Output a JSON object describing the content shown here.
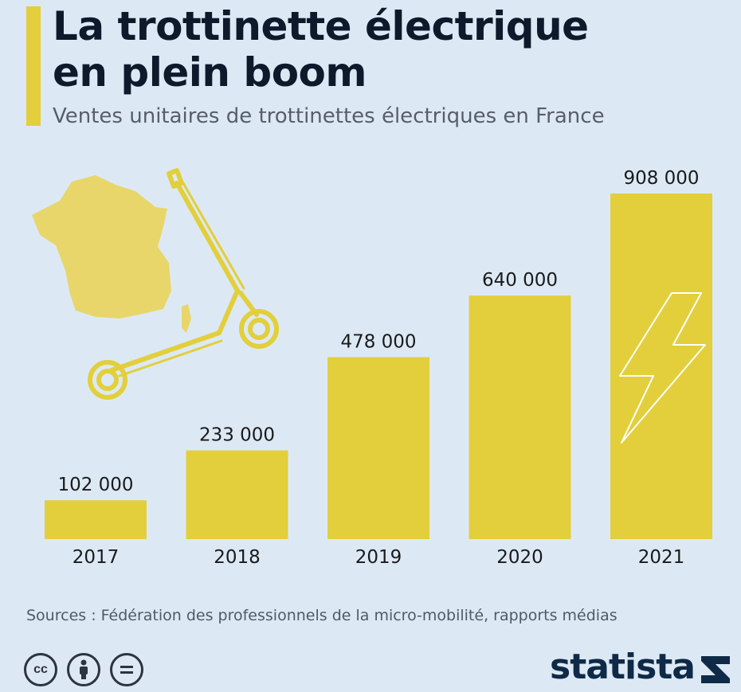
{
  "header": {
    "title_line1": "La trottinette électrique",
    "title_line2": "en plein boom",
    "subtitle": "Ventes unitaires de trottinettes électriques en France"
  },
  "colors": {
    "background": "#dce9f5",
    "bar": "#e2cf3b",
    "text": "#1a1a1a"
  },
  "chart_data": {
    "type": "bar",
    "categories": [
      "2017",
      "2018",
      "2019",
      "2020",
      "2021"
    ],
    "values": [
      102000,
      233000,
      478000,
      640000,
      908000
    ],
    "value_labels": [
      "102 000",
      "233 000",
      "478 000",
      "640 000",
      "908 000"
    ],
    "title": "La trottinette électrique en plein boom",
    "subtitle": "Ventes unitaires de trottinettes électriques en France",
    "xlabel": "",
    "ylabel": "",
    "ylim": [
      0,
      908000
    ],
    "grid": false,
    "legend": "none"
  },
  "footer": {
    "source": "Sources : Fédération des professionnels de la micro-mobilité, rapports médias",
    "brand": "statista",
    "license_icons": [
      "cc-icon",
      "attribution-icon",
      "no-derivatives-icon"
    ]
  },
  "decorations": [
    "france-map-icon",
    "scooter-icon",
    "lightning-icon"
  ]
}
